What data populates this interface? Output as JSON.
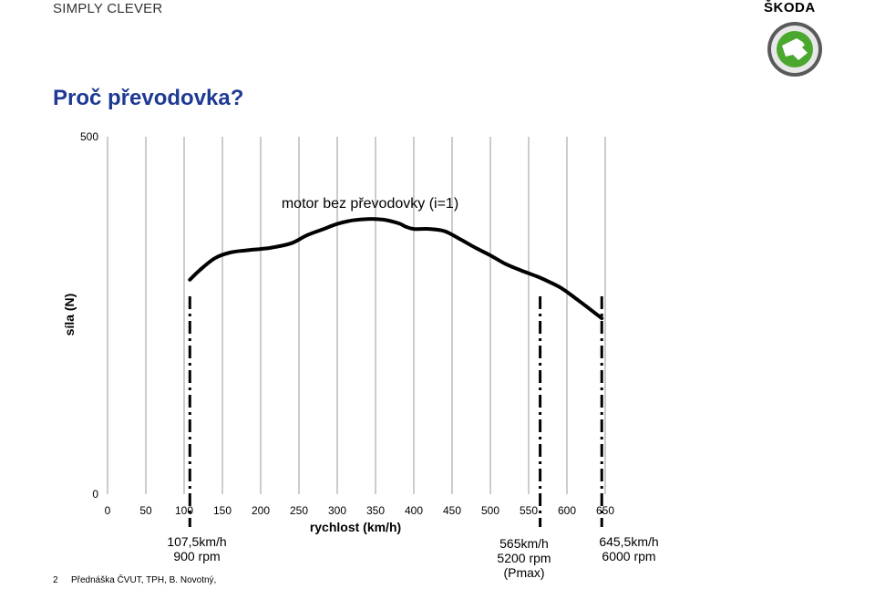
{
  "header": {
    "slogan": "SIMPLY CLEVER",
    "brand": "ŠKODA"
  },
  "title": "Proč převodovka?",
  "footer": {
    "page": "2",
    "text": "Přednáška ČVUT, TPH, B. Novotný,"
  },
  "colors": {
    "title": "#1f3a93",
    "curve": "#000000",
    "grid": "#999999",
    "logo_green": "#4ba82e"
  },
  "chart_data": {
    "type": "line",
    "title": "motor bez převodovky (i=1)",
    "xlabel": "rychlost (km/h)",
    "ylabel": "síla (N)",
    "xlim": [
      0,
      650
    ],
    "ylim": [
      0,
      500
    ],
    "xticks": [
      0,
      50,
      100,
      150,
      200,
      250,
      300,
      350,
      400,
      450,
      500,
      550,
      600,
      650
    ],
    "yticks": [
      0,
      500
    ],
    "grid": "vertical",
    "series": [
      {
        "x": [
          107.5,
          120,
          140,
          160,
          180,
          200,
          215,
          240,
          260,
          280,
          300,
          320,
          340,
          360,
          380,
          390,
          400,
          420,
          440,
          460,
          480,
          500,
          520,
          540,
          560,
          575,
          590,
          600,
          610,
          625,
          645.5
        ],
        "y": [
          300,
          313,
          330,
          338,
          341,
          343,
          345,
          351,
          362,
          370,
          378,
          383,
          385,
          384,
          379,
          374,
          371,
          371,
          368,
          357,
          345,
          334,
          322,
          313,
          305,
          298,
          290,
          283,
          275,
          263,
          246
        ]
      }
    ],
    "markers": [
      {
        "x": 107.5,
        "label_speed": "107,5km/h",
        "label_rpm": "900 rpm",
        "label_extra": ""
      },
      {
        "x": 565,
        "label_speed": "565km/h",
        "label_rpm": "5200 rpm",
        "label_extra": "(Pmax)"
      },
      {
        "x": 645.5,
        "label_speed": "645,5km/h",
        "label_rpm": "6000 rpm",
        "label_extra": ""
      }
    ]
  }
}
